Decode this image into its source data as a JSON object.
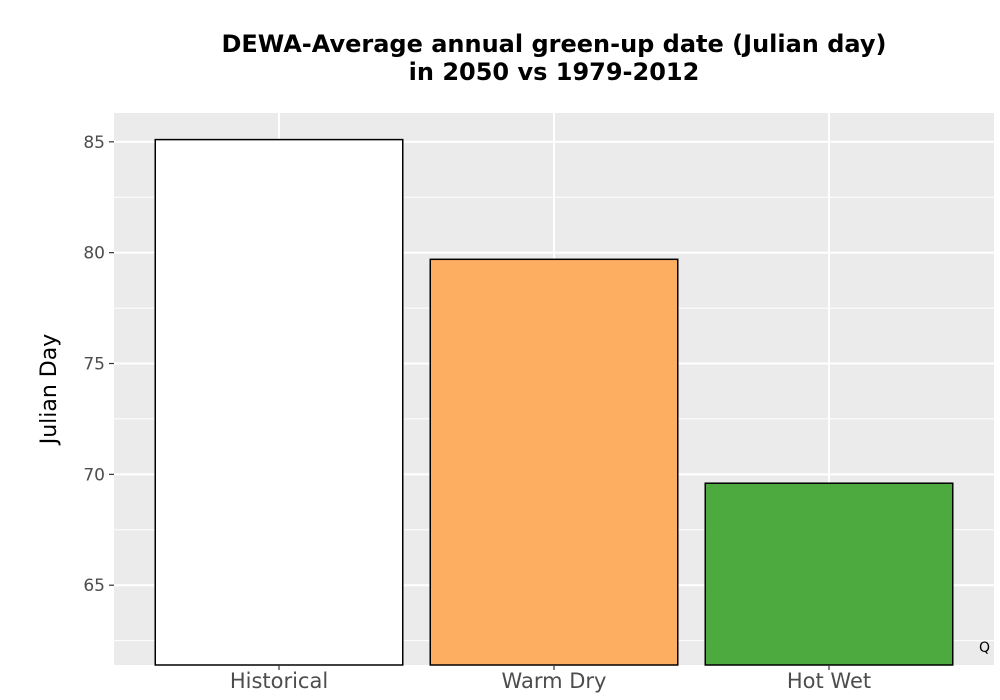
{
  "chart_data": {
    "type": "bar",
    "title": [
      "DEWA-Average annual green-up date (Julian day)",
      "in 2050 vs 1979-2012"
    ],
    "xlabel": "",
    "ylabel": "Julian Day",
    "categories": [
      "Historical",
      "Warm Dry",
      "Hot Wet"
    ],
    "values": [
      85.1,
      79.7,
      69.6
    ],
    "ylim": [
      61.4,
      86.3
    ],
    "yticks": [
      65,
      70,
      75,
      80,
      85
    ],
    "grid": true,
    "legend": "none",
    "colors": {
      "bars": [
        "#ffffff",
        "#fdae61",
        "#4daa3f"
      ],
      "bar_outline": "#000000",
      "panel_background": "#ebebeb",
      "grid": "#ffffff"
    }
  },
  "corner_mark": "Q"
}
